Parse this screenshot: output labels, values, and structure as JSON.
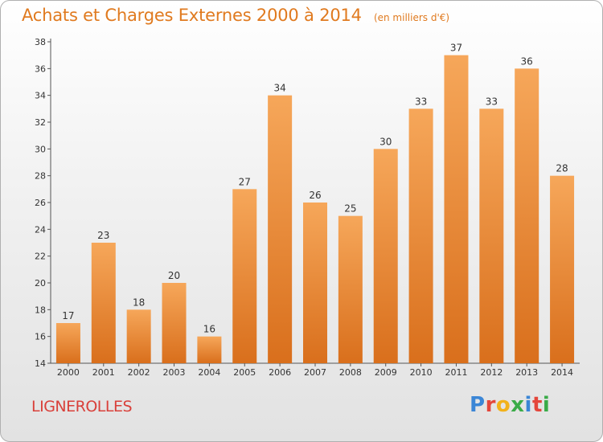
{
  "title": "Achats et Charges Externes 2000 à 2014",
  "unit": "(en milliers d'€)",
  "town": "LIGNEROLLES",
  "logo": {
    "p": "P",
    "r": "r",
    "o": "o",
    "x": "x",
    "i1": "i",
    "t": "t",
    "i2": "i"
  },
  "colors": {
    "bar_top": "#f6a75a",
    "bar_bottom": "#d96f1c",
    "title": "#e07a1f",
    "town": "#d9403a"
  },
  "chart_data": {
    "type": "bar",
    "categories": [
      "2000",
      "2001",
      "2002",
      "2003",
      "2004",
      "2005",
      "2006",
      "2007",
      "2008",
      "2009",
      "2010",
      "2011",
      "2012",
      "2013",
      "2014"
    ],
    "values": [
      17,
      23,
      18,
      20,
      16,
      27,
      34,
      26,
      25,
      30,
      33,
      37,
      33,
      36,
      28
    ],
    "title": "Achats et Charges Externes 2000 à 2014",
    "ylim": [
      14,
      38
    ],
    "yticks": [
      14,
      16,
      18,
      20,
      22,
      24,
      26,
      28,
      30,
      32,
      34,
      36,
      38
    ],
    "grid": false,
    "legend": "none"
  }
}
